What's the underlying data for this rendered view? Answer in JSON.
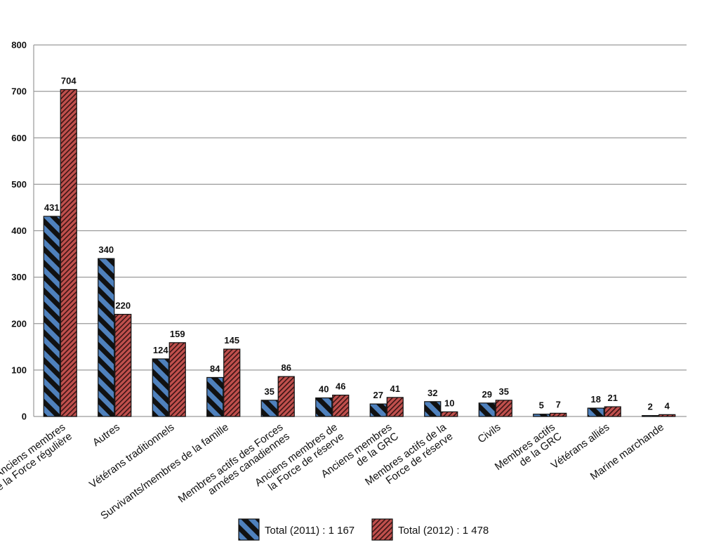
{
  "chart_data": {
    "type": "bar",
    "title": "",
    "xlabel": "",
    "ylabel": "",
    "ylim": [
      0,
      800
    ],
    "yticks": [
      "0",
      "100",
      "200",
      "300",
      "400",
      "500",
      "600",
      "700",
      "800"
    ],
    "grid": true,
    "legend_position": "bottom",
    "categories": [
      [
        "Anciens membres",
        "de la Force régulière"
      ],
      [
        "Autres"
      ],
      [
        "Vétérans traditionnels"
      ],
      [
        "Survivants/membres de la famille"
      ],
      [
        "Membres actifs des Forces",
        "armées  canadiennes"
      ],
      [
        "Anciens membres de",
        "la Force de réserve"
      ],
      [
        "Anciens membres",
        "de la GRC"
      ],
      [
        "Membres actifs de la",
        "Force de réserve"
      ],
      [
        "Civils"
      ],
      [
        "Membres actifs",
        "de la GRC"
      ],
      [
        "Vétérans alliés"
      ],
      [
        "Marine marchande"
      ]
    ],
    "series": [
      {
        "name": "Total (2011) : 1 167",
        "values": [
          431,
          340,
          124,
          84,
          35,
          40,
          27,
          32,
          29,
          5,
          18,
          2
        ],
        "labels": [
          "431",
          "340",
          "124",
          "84",
          "35",
          "40",
          "27",
          "32",
          "29",
          "5",
          "18",
          "2"
        ],
        "color": "#4f81bd",
        "stripe": "#111111"
      },
      {
        "name": "Total (2012) : 1 478",
        "values": [
          704,
          220,
          159,
          145,
          86,
          46,
          41,
          10,
          35,
          7,
          21,
          4
        ],
        "labels": [
          "704",
          "220",
          "159",
          "145",
          "86",
          "46",
          "41",
          "10",
          "35",
          "7",
          "21",
          "4"
        ],
        "color": "#c0504d",
        "stripe": "#3a1414"
      }
    ]
  }
}
